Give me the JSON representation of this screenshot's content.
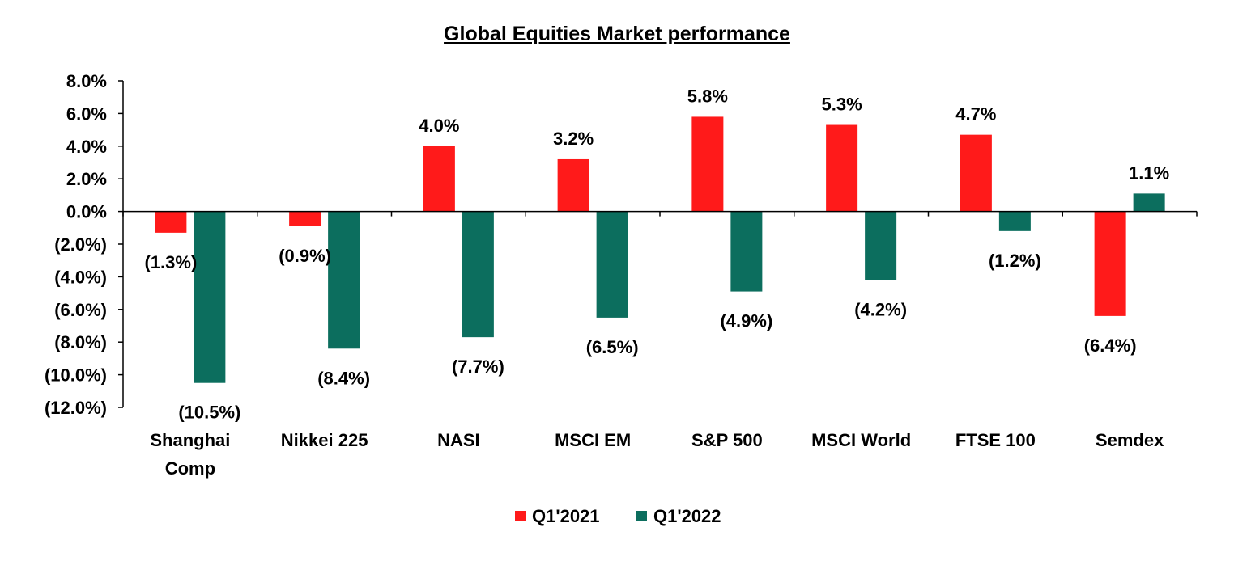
{
  "chart_data": {
    "type": "bar",
    "title": "Global Equities Market performance",
    "categories": [
      [
        "Shanghai",
        "Comp"
      ],
      [
        "Nikkei 225"
      ],
      [
        "NASI"
      ],
      [
        "MSCI EM"
      ],
      [
        "S&P 500"
      ],
      [
        "MSCI World"
      ],
      [
        "FTSE 100"
      ],
      [
        "Semdex"
      ]
    ],
    "series": [
      {
        "name": "Q1'2021",
        "color": "#FF1A1A",
        "values": [
          -1.3,
          -0.9,
          4.0,
          3.2,
          5.8,
          5.3,
          4.7,
          -6.4
        ],
        "labels": [
          "(1.3%)",
          "(0.9%)",
          "4.0%",
          "3.2%",
          "5.8%",
          "5.3%",
          "4.7%",
          "(6.4%)"
        ]
      },
      {
        "name": "Q1'2022",
        "color": "#0C6E5E",
        "values": [
          -10.5,
          -8.4,
          -7.7,
          -6.5,
          -4.9,
          -4.2,
          -1.2,
          1.1
        ],
        "labels": [
          "(10.5%)",
          "(8.4%)",
          "(7.7%)",
          "(6.5%)",
          "(4.9%)",
          "(4.2%)",
          "(1.2%)",
          "1.1%"
        ]
      }
    ],
    "ylim": [
      -12,
      8
    ],
    "yticks": [
      8,
      6,
      4,
      2,
      0,
      -2,
      -4,
      -6,
      -8,
      -10,
      -12
    ],
    "ytick_labels": [
      "8.0%",
      "6.0%",
      "4.0%",
      "2.0%",
      "0.0%",
      "(2.0%)",
      "(4.0%)",
      "(6.0%)",
      "(8.0%)",
      "(10.0%)",
      "(12.0%)"
    ],
    "xlabel": "",
    "ylabel": "",
    "grid": false,
    "legend_position": "bottom"
  }
}
